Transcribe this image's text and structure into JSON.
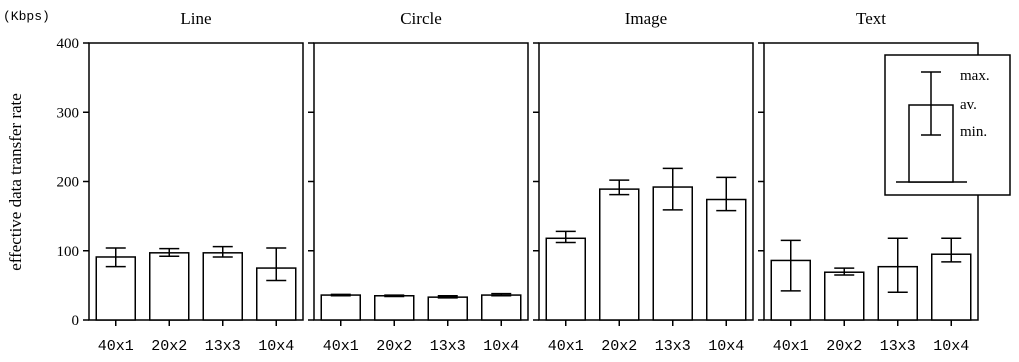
{
  "unit_label": "(Kbps)",
  "chart_data": [
    {
      "type": "bar",
      "title": "Line",
      "ylabel": "effective data transfer rate",
      "ylim": [
        0,
        400
      ],
      "yticks": [
        0,
        100,
        200,
        300,
        400
      ],
      "categories": [
        "40x1",
        "20x2",
        "13x3",
        "10x4"
      ],
      "series": [
        {
          "values": [
            91,
            97,
            97,
            75
          ],
          "min": [
            77,
            92,
            91,
            57
          ],
          "max": [
            104,
            103,
            106,
            104
          ]
        }
      ]
    },
    {
      "type": "bar",
      "title": "Circle",
      "ylim": [
        0,
        400
      ],
      "yticks": [
        0,
        100,
        200,
        300,
        400
      ],
      "categories": [
        "40x1",
        "20x2",
        "13x3",
        "10x4"
      ],
      "series": [
        {
          "values": [
            36,
            35,
            33,
            36
          ],
          "min": [
            35,
            34,
            32,
            35
          ],
          "max": [
            37,
            36,
            35,
            38
          ]
        }
      ]
    },
    {
      "type": "bar",
      "title": "Image",
      "ylim": [
        0,
        400
      ],
      "yticks": [
        0,
        100,
        200,
        300,
        400
      ],
      "categories": [
        "40x1",
        "20x2",
        "13x3",
        "10x4"
      ],
      "series": [
        {
          "values": [
            118,
            189,
            192,
            174
          ],
          "min": [
            112,
            181,
            159,
            158
          ],
          "max": [
            128,
            202,
            219,
            206
          ]
        }
      ]
    },
    {
      "type": "bar",
      "title": "Text",
      "ylim": [
        0,
        400
      ],
      "yticks": [
        0,
        100,
        200,
        300,
        400
      ],
      "categories": [
        "40x1",
        "20x2",
        "13x3",
        "10x4"
      ],
      "series": [
        {
          "values": [
            86,
            69,
            77,
            95
          ],
          "min": [
            42,
            65,
            40,
            84
          ],
          "max": [
            115,
            75,
            118,
            118
          ]
        }
      ],
      "legend": {
        "position": "top-right",
        "labels": {
          "max": "max.",
          "av": "av.",
          "min": "min."
        }
      }
    }
  ]
}
